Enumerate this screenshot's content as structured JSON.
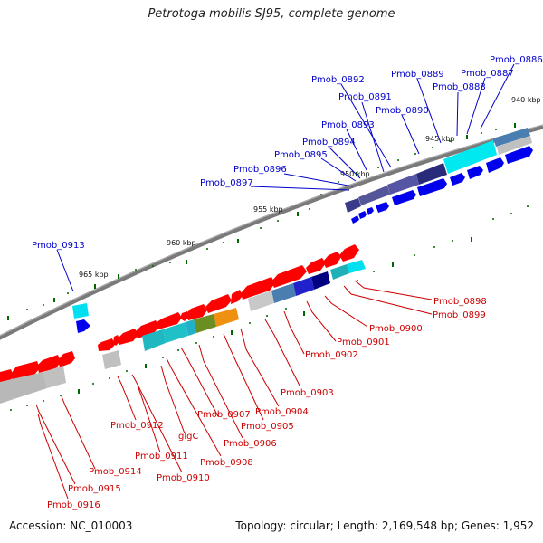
{
  "title": "Petrotoga mobilis SJ95, complete genome",
  "footer": {
    "accession": "Accession: NC_010003",
    "stats": "Topology: circular; Length: 2,169,548 bp; Genes: 1,952"
  },
  "colors": {
    "forward_label": "#0000cc",
    "reverse_label": "#cc0000",
    "forward_gene": "#0000ff",
    "reverse_gene": "#ff0000",
    "cog_tick": "#006600",
    "backbone": "#808080"
  },
  "tick_labels": [
    "940 kbp",
    "945 kbp",
    "950 kbp",
    "955 kbp",
    "960 kbp",
    "965 kbp"
  ],
  "forward_gene_labels": [
    "Pmob_0886",
    "Pmob_0887",
    "Pmob_0888",
    "Pmob_0889",
    "Pmob_0890",
    "Pmob_0891",
    "Pmob_0892",
    "Pmob_0893",
    "Pmob_0894",
    "Pmob_0895",
    "Pmob_0896",
    "Pmob_0897",
    "Pmob_0913"
  ],
  "reverse_gene_labels": [
    "Pmob_0898",
    "Pmob_0899",
    "Pmob_0900",
    "Pmob_0901",
    "Pmob_0902",
    "Pmob_0903",
    "Pmob_0904",
    "Pmob_0905",
    "Pmob_0906",
    "Pmob_0907",
    "Pmob_0908",
    "glgC",
    "Pmob_0910",
    "Pmob_0911",
    "Pmob_0912",
    "Pmob_0914",
    "Pmob_0915",
    "Pmob_0916"
  ]
}
